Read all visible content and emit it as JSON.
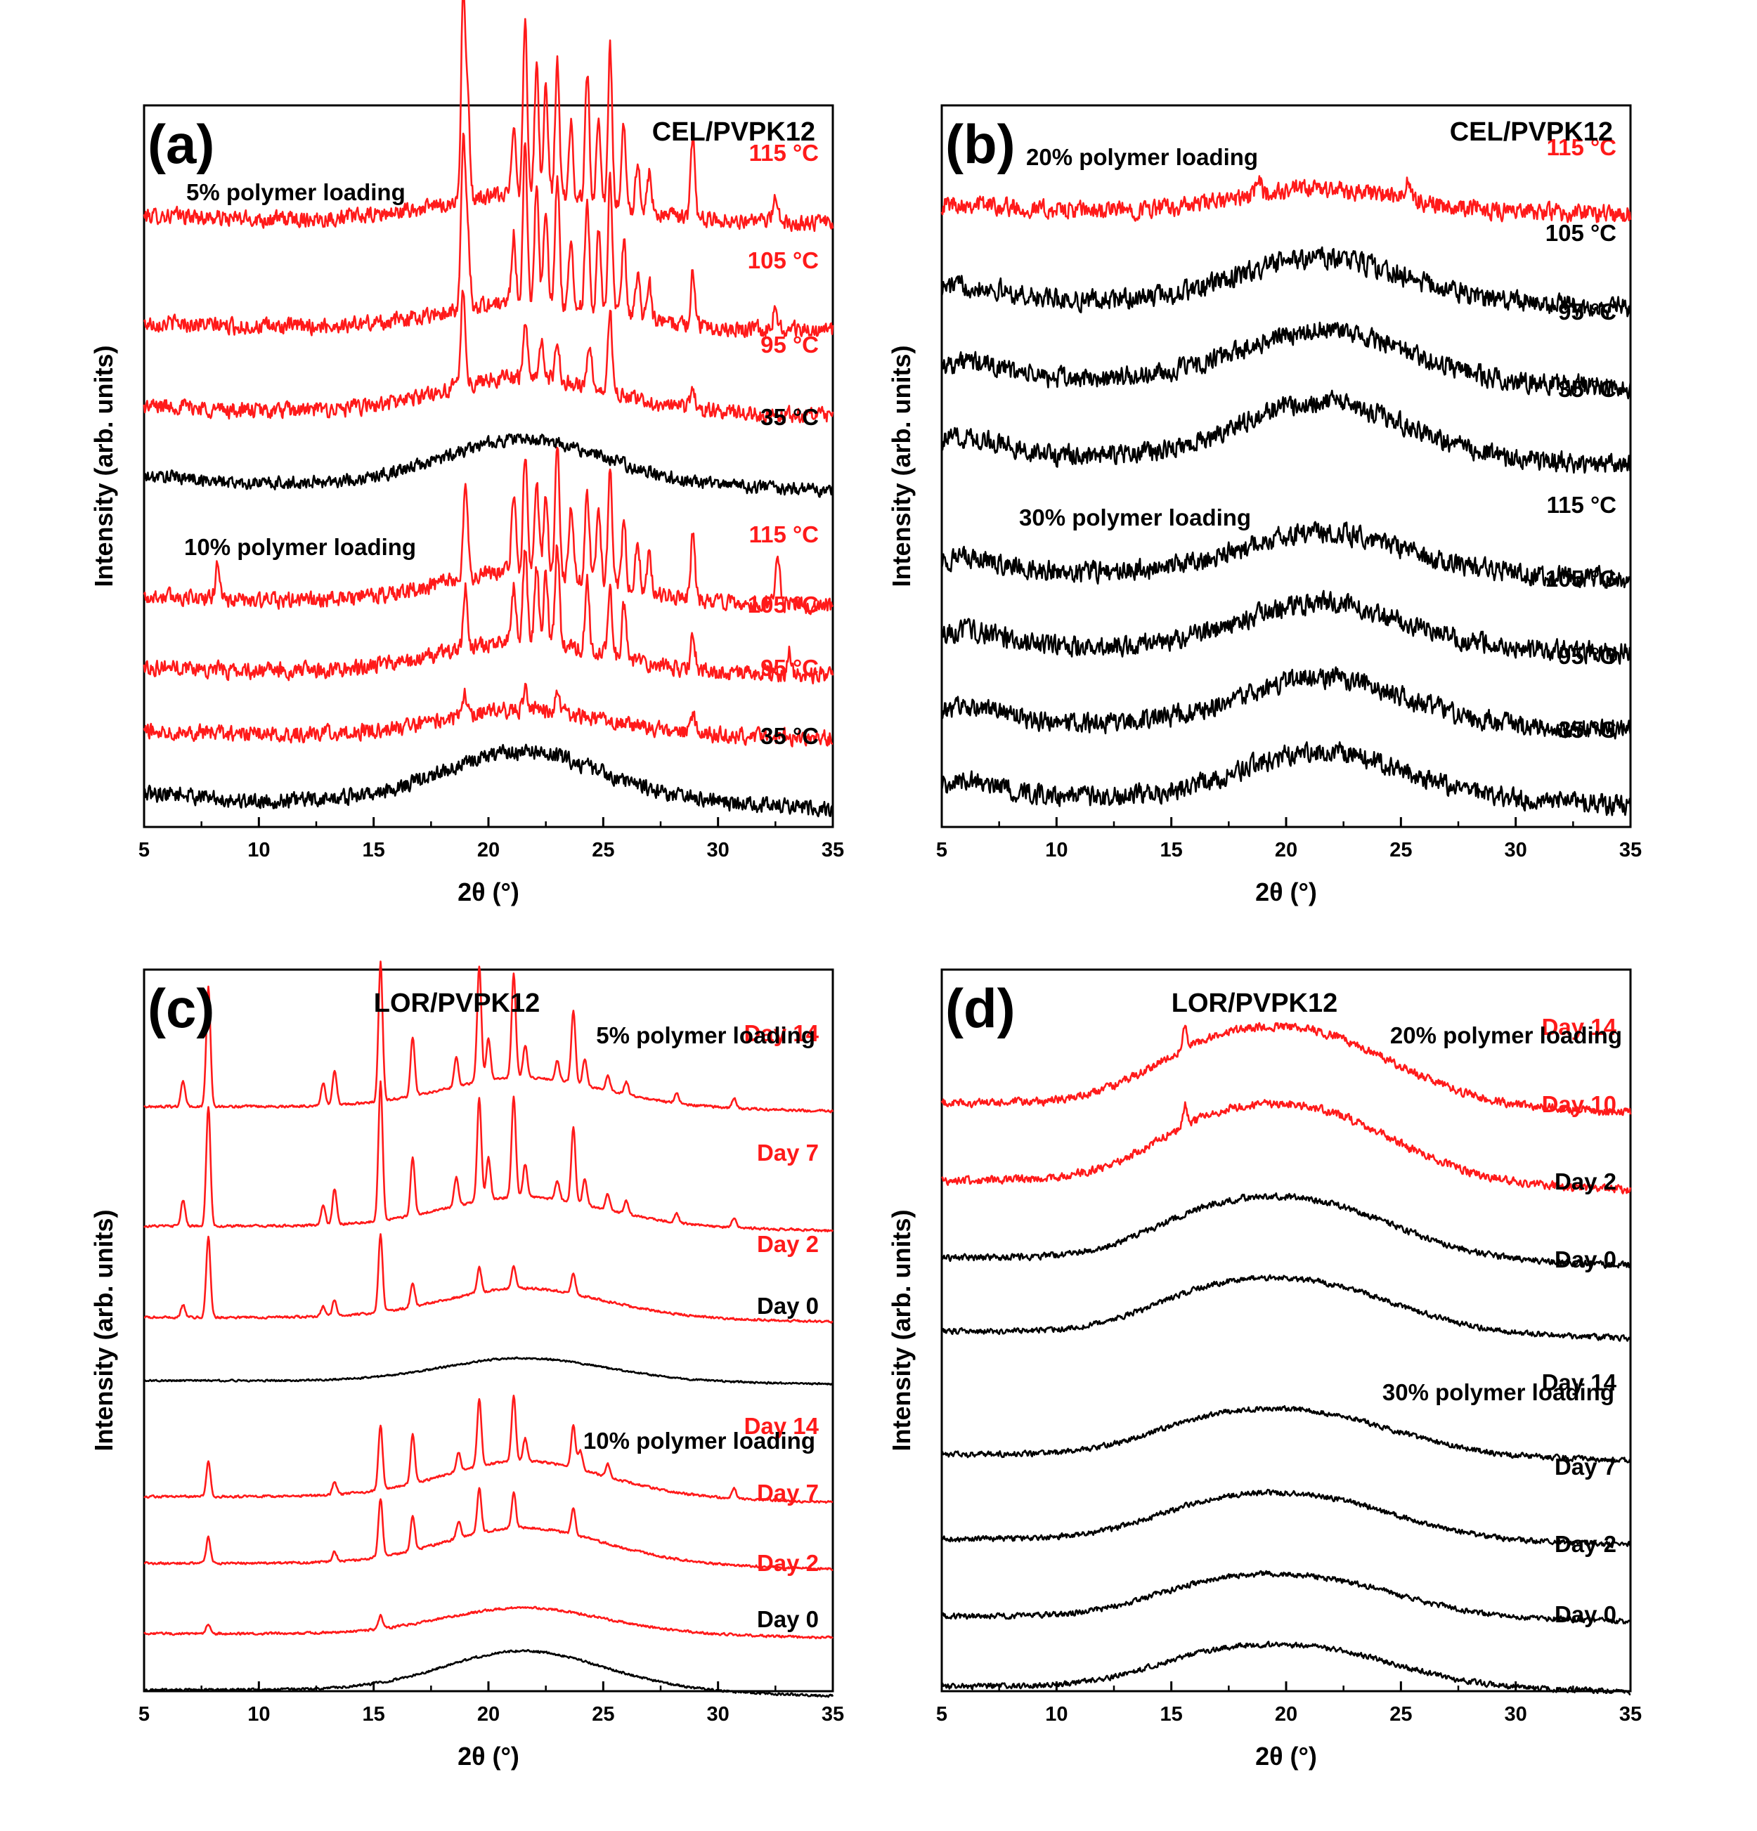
{
  "colors": {
    "red": "#ff1a1a",
    "black": "#000000"
  },
  "chart_data": [
    {
      "type": "line",
      "panel_label": "(a)",
      "title": "CEL/PVPK12",
      "xlabel": "2θ (°)",
      "ylabel": "Intensity (arb. units)",
      "xlim": [
        5,
        35
      ],
      "xticks": [
        "5",
        "10",
        "15",
        "20",
        "25",
        "30",
        "35"
      ],
      "yticks": "none",
      "group_labels": [
        "5% polymer loading",
        "10% polymer loading"
      ],
      "series": [
        {
          "name": "115 °C",
          "group": 0,
          "color": "red",
          "offset": 8,
          "noise": 0.22,
          "hump": 0.5,
          "peaks": [
            [
              18.9,
              4.2
            ],
            [
              19.1,
              1.8
            ],
            [
              21.1,
              1.5
            ],
            [
              21.6,
              3.6
            ],
            [
              22.1,
              2.6
            ],
            [
              22.5,
              2.2
            ],
            [
              23.0,
              2.8
            ],
            [
              23.6,
              1.5
            ],
            [
              24.3,
              2.7
            ],
            [
              24.8,
              1.8
            ],
            [
              25.3,
              3.2
            ],
            [
              25.9,
              1.7
            ],
            [
              26.5,
              1.0
            ],
            [
              27.0,
              0.8
            ],
            [
              28.9,
              1.6
            ],
            [
              32.5,
              0.6
            ]
          ]
        },
        {
          "name": "105 °C",
          "group": 0,
          "color": "red",
          "offset": 6.6,
          "noise": 0.22,
          "hump": 0.5,
          "peaks": [
            [
              18.9,
              3.3
            ],
            [
              19.1,
              1.5
            ],
            [
              21.1,
              1.4
            ],
            [
              21.6,
              3.2
            ],
            [
              22.1,
              2.4
            ],
            [
              22.5,
              2.0
            ],
            [
              23.0,
              2.6
            ],
            [
              23.6,
              1.3
            ],
            [
              24.3,
              2.3
            ],
            [
              24.8,
              1.6
            ],
            [
              25.3,
              2.9
            ],
            [
              25.9,
              1.5
            ],
            [
              26.5,
              0.9
            ],
            [
              27.0,
              0.8
            ],
            [
              28.9,
              1.1
            ],
            [
              32.5,
              0.5
            ]
          ]
        },
        {
          "name": "95 °C",
          "group": 0,
          "color": "red",
          "offset": 5.4,
          "noise": 0.22,
          "hump": 0.7,
          "peaks": [
            [
              18.9,
              2.0
            ],
            [
              21.6,
              1.1
            ],
            [
              22.3,
              0.8
            ],
            [
              23.0,
              0.7
            ],
            [
              24.4,
              0.9
            ],
            [
              25.3,
              1.6
            ],
            [
              28.9,
              0.5
            ]
          ]
        },
        {
          "name": "35 °C",
          "group": 0,
          "color": "black",
          "offset": 4.4,
          "noise": 0.18,
          "hump": 0.9,
          "peaks": []
        },
        {
          "name": "115 °C",
          "group": 1,
          "color": "red",
          "offset": 2.9,
          "noise": 0.22,
          "hump": 0.6,
          "peaks": [
            [
              8.2,
              0.8
            ],
            [
              19.0,
              2.0
            ],
            [
              21.1,
              1.6
            ],
            [
              21.6,
              2.4
            ],
            [
              22.1,
              1.8
            ],
            [
              22.5,
              1.6
            ],
            [
              23.0,
              2.6
            ],
            [
              23.6,
              1.4
            ],
            [
              24.3,
              1.8
            ],
            [
              24.8,
              1.5
            ],
            [
              25.3,
              2.3
            ],
            [
              25.9,
              1.4
            ],
            [
              26.5,
              1.0
            ],
            [
              27.0,
              0.8
            ],
            [
              28.9,
              1.3
            ],
            [
              32.6,
              0.9
            ]
          ]
        },
        {
          "name": "105 °C",
          "group": 1,
          "color": "red",
          "offset": 1.9,
          "noise": 0.22,
          "hump": 0.6,
          "peaks": [
            [
              19.0,
              1.3
            ],
            [
              21.1,
              1.1
            ],
            [
              21.6,
              1.9
            ],
            [
              22.1,
              1.5
            ],
            [
              22.5,
              1.4
            ],
            [
              23.0,
              2.0
            ],
            [
              24.3,
              1.4
            ],
            [
              25.3,
              1.3
            ],
            [
              25.9,
              1.1
            ],
            [
              28.9,
              0.8
            ],
            [
              33.1,
              0.5
            ]
          ]
        },
        {
          "name": "95 °C",
          "group": 1,
          "color": "red",
          "offset": 0.9,
          "noise": 0.22,
          "hump": 0.5,
          "peaks": [
            [
              19.0,
              0.4
            ],
            [
              21.6,
              0.4
            ],
            [
              23.0,
              0.5
            ],
            [
              28.9,
              0.4
            ]
          ]
        },
        {
          "name": "35 °C",
          "group": 1,
          "color": "black",
          "offset": 0,
          "noise": 0.22,
          "hump": 1.0,
          "peaks": []
        }
      ]
    },
    {
      "type": "line",
      "panel_label": "(b)",
      "title": "CEL/PVPK12",
      "xlabel": "2θ (°)",
      "ylabel": "Intensity (arb. units)",
      "xlim": [
        5,
        35
      ],
      "xticks": [
        "5",
        "10",
        "15",
        "20",
        "25",
        "30",
        "35"
      ],
      "yticks": "none",
      "group_labels": [
        "20% polymer loading",
        "30% polymer loading"
      ],
      "series": [
        {
          "name": "115 °C",
          "group": 0,
          "color": "red",
          "offset": 8,
          "noise": 0.4,
          "hump": 0.7,
          "peaks": [
            [
              18.8,
              0.7
            ],
            [
              25.3,
              0.7
            ]
          ]
        },
        {
          "name": "105 °C",
          "group": 0,
          "color": "black",
          "offset": 6.8,
          "noise": 0.45,
          "hump": 1.4,
          "peaks": []
        },
        {
          "name": "95 °C",
          "group": 0,
          "color": "black",
          "offset": 5.6,
          "noise": 0.45,
          "hump": 1.6,
          "peaks": []
        },
        {
          "name": "35 °C",
          "group": 0,
          "color": "black",
          "offset": 4.4,
          "noise": 0.45,
          "hump": 1.8,
          "peaks": []
        },
        {
          "name": "115 °C",
          "group": 1,
          "color": "black",
          "offset": 3.1,
          "noise": 0.45,
          "hump": 1.3,
          "peaks": []
        },
        {
          "name": "105 °C",
          "group": 1,
          "color": "black",
          "offset": 2.0,
          "noise": 0.45,
          "hump": 1.4,
          "peaks": []
        },
        {
          "name": "95 °C",
          "group": 1,
          "color": "black",
          "offset": 0.95,
          "noise": 0.45,
          "hump": 1.5,
          "peaks": []
        },
        {
          "name": "35 °C",
          "group": 1,
          "color": "black",
          "offset": 0,
          "noise": 0.45,
          "hump": 1.5,
          "peaks": []
        }
      ]
    },
    {
      "type": "line",
      "panel_label": "(c)",
      "title": "LOR/PVPK12",
      "xlabel": "2θ (°)",
      "ylabel": "Intensity (arb. units)",
      "xlim": [
        5,
        35
      ],
      "xticks": [
        "5",
        "10",
        "15",
        "20",
        "25",
        "30",
        "35"
      ],
      "yticks": "none",
      "group_labels": [
        "5% polymer loading",
        "10% polymer loading"
      ],
      "series": [
        {
          "name": "Day 14",
          "group": 0,
          "color": "red",
          "offset": 11.8,
          "noise": 0.05,
          "hump": 0.9,
          "peaks": [
            [
              6.7,
              0.8
            ],
            [
              7.8,
              3.7
            ],
            [
              12.8,
              0.7
            ],
            [
              13.3,
              1.1
            ],
            [
              15.3,
              4.3
            ],
            [
              16.7,
              1.8
            ],
            [
              18.6,
              0.9
            ],
            [
              19.6,
              3.6
            ],
            [
              20.0,
              1.3
            ],
            [
              21.1,
              3.2
            ],
            [
              21.6,
              1.0
            ],
            [
              23.0,
              0.6
            ],
            [
              23.7,
              2.2
            ],
            [
              24.2,
              0.8
            ],
            [
              25.2,
              0.5
            ],
            [
              26.0,
              0.4
            ],
            [
              28.2,
              0.3
            ],
            [
              30.7,
              0.3
            ]
          ]
        },
        {
          "name": "Day 7",
          "group": 0,
          "color": "red",
          "offset": 8.9,
          "noise": 0.05,
          "hump": 0.9,
          "peaks": [
            [
              6.7,
              0.8
            ],
            [
              7.8,
              3.7
            ],
            [
              12.8,
              0.6
            ],
            [
              13.3,
              1.1
            ],
            [
              15.3,
              4.3
            ],
            [
              16.7,
              1.8
            ],
            [
              18.6,
              0.9
            ],
            [
              19.6,
              3.2
            ],
            [
              20.0,
              1.3
            ],
            [
              21.1,
              3.1
            ],
            [
              21.6,
              1.0
            ],
            [
              23.0,
              0.6
            ],
            [
              23.7,
              2.3
            ],
            [
              24.2,
              0.8
            ],
            [
              25.2,
              0.5
            ],
            [
              26.0,
              0.4
            ],
            [
              28.2,
              0.3
            ],
            [
              30.7,
              0.3
            ]
          ]
        },
        {
          "name": "Day 2",
          "group": 0,
          "color": "red",
          "offset": 6.8,
          "noise": 0.05,
          "hump": 0.9,
          "peaks": [
            [
              6.7,
              0.4
            ],
            [
              7.8,
              2.5
            ],
            [
              12.8,
              0.3
            ],
            [
              13.3,
              0.5
            ],
            [
              15.3,
              2.4
            ],
            [
              16.7,
              0.7
            ],
            [
              19.6,
              0.8
            ],
            [
              21.1,
              0.7
            ],
            [
              23.7,
              0.6
            ]
          ]
        },
        {
          "name": "Day 0",
          "group": 0,
          "color": "black",
          "offset": 5.5,
          "noise": 0.04,
          "hump": 0.7,
          "peaks": []
        },
        {
          "name": "Day 14",
          "group": 1,
          "color": "red",
          "offset": 3.6,
          "noise": 0.05,
          "hump": 1.1,
          "peaks": [
            [
              7.8,
              1.1
            ],
            [
              13.3,
              0.4
            ],
            [
              15.3,
              2.0
            ],
            [
              16.7,
              1.5
            ],
            [
              18.7,
              0.6
            ],
            [
              19.6,
              2.1
            ],
            [
              21.1,
              2.0
            ],
            [
              21.6,
              0.7
            ],
            [
              23.7,
              1.3
            ],
            [
              24.0,
              0.6
            ],
            [
              25.2,
              0.4
            ],
            [
              30.7,
              0.3
            ]
          ]
        },
        {
          "name": "Day 7",
          "group": 1,
          "color": "red",
          "offset": 2.2,
          "noise": 0.05,
          "hump": 1.1,
          "peaks": [
            [
              7.8,
              0.8
            ],
            [
              13.3,
              0.3
            ],
            [
              15.3,
              1.8
            ],
            [
              16.7,
              1.1
            ],
            [
              18.7,
              0.5
            ],
            [
              19.6,
              1.4
            ],
            [
              21.1,
              1.1
            ],
            [
              23.7,
              0.8
            ]
          ]
        },
        {
          "name": "Day 2",
          "group": 1,
          "color": "red",
          "offset": 1.0,
          "noise": 0.05,
          "hump": 0.8,
          "peaks": [
            [
              7.8,
              0.3
            ],
            [
              15.3,
              0.4
            ]
          ]
        },
        {
          "name": "Day 0",
          "group": 1,
          "color": "black",
          "offset": 0,
          "noise": 0.05,
          "hump": 1.2,
          "peaks": []
        }
      ]
    },
    {
      "type": "line",
      "panel_label": "(d)",
      "title": "LOR/PVPK12",
      "xlabel": "2θ (°)",
      "ylabel": "Intensity (arb. units)",
      "xlim": [
        5,
        35
      ],
      "xticks": [
        "5",
        "10",
        "15",
        "20",
        "25",
        "30",
        "35"
      ],
      "yticks": "none",
      "group_labels": [
        "20% polymer loading",
        "30% polymer loading"
      ],
      "series": [
        {
          "name": "Day 14",
          "group": 0,
          "color": "red",
          "offset": 8.0,
          "noise": 0.18,
          "hump": 2.0,
          "peaks": [
            [
              15.6,
              0.7
            ]
          ]
        },
        {
          "name": "Day 10",
          "group": 0,
          "color": "red",
          "offset": 6.6,
          "noise": 0.18,
          "hump": 2.0,
          "peaks": [
            [
              15.6,
              0.7
            ]
          ]
        },
        {
          "name": "Day 2",
          "group": 0,
          "color": "black",
          "offset": 5.4,
          "noise": 0.14,
          "hump": 1.6,
          "peaks": []
        },
        {
          "name": "Day 0",
          "group": 0,
          "color": "black",
          "offset": 4.4,
          "noise": 0.12,
          "hump": 1.4,
          "peaks": []
        },
        {
          "name": "Day 14",
          "group": 1,
          "color": "black",
          "offset": 2.8,
          "noise": 0.12,
          "hump": 1.2,
          "peaks": []
        },
        {
          "name": "Day 7",
          "group": 1,
          "color": "black",
          "offset": 1.9,
          "noise": 0.12,
          "hump": 1.2,
          "peaks": []
        },
        {
          "name": "Day 2",
          "group": 1,
          "color": "black",
          "offset": 0.9,
          "noise": 0.12,
          "hump": 1.1,
          "peaks": []
        },
        {
          "name": "Day 0",
          "group": 1,
          "color": "black",
          "offset": 0,
          "noise": 0.12,
          "hump": 1.1,
          "peaks": []
        }
      ]
    }
  ]
}
